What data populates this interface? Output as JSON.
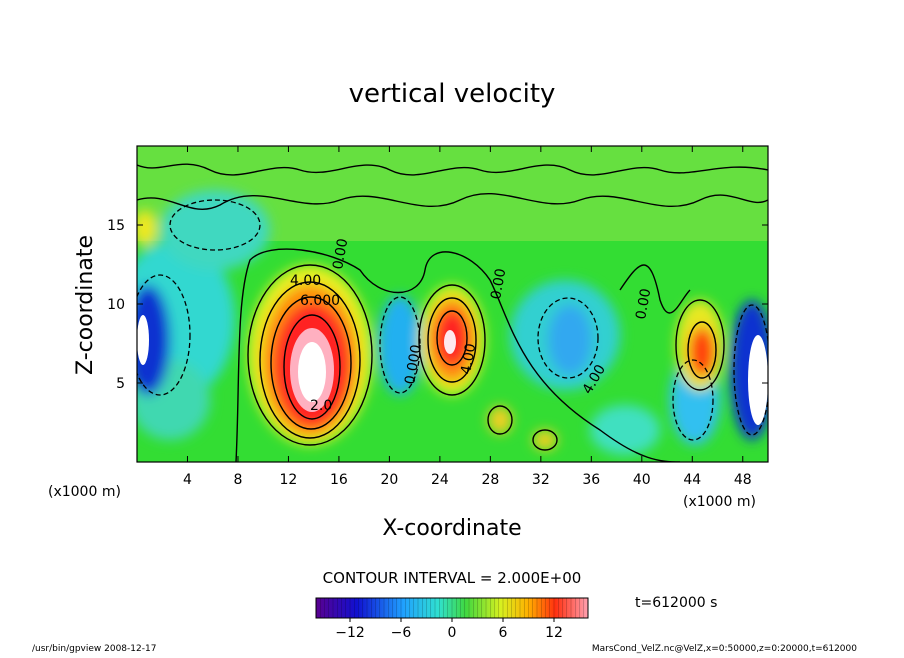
{
  "footer": {
    "left": "/usr/bin/gpview  2008-12-17",
    "right": "MarsCond_VelZ.nc@VelZ,x=0:50000,z=0:20000,t=612000"
  },
  "contour_interval": "CONTOUR INTERVAL = 2.000E+00",
  "time_label": "t=612000 s",
  "x_unit_left": "(x1000 m)",
  "x_unit_right": "(x1000 m)",
  "chart_data": {
    "type": "heatmap",
    "title": "vertical velocity",
    "xlabel": "X-coordinate",
    "ylabel": "Z-coordinate",
    "x_unit": "(x1000 m)",
    "xlim": [
      0,
      50
    ],
    "ylim": [
      0,
      20
    ],
    "x_ticks": [
      4,
      8,
      12,
      16,
      20,
      24,
      28,
      32,
      36,
      40,
      44,
      48
    ],
    "y_ticks": [
      5,
      10,
      15
    ],
    "colorbar": {
      "min": -16,
      "max": 16,
      "ticks": [
        -12,
        -6,
        0,
        6,
        12
      ]
    },
    "contour_labels": [
      "4.00",
      "6.000",
      "2.0",
      "0.00",
      "0.000",
      "4.00",
      "0.00",
      "4.00",
      "0.00"
    ],
    "features": [
      {
        "x": 13.5,
        "z": 6.5,
        "value": 14
      },
      {
        "x": 25.0,
        "z": 7.5,
        "value": 12
      },
      {
        "x": 44.5,
        "z": 6.5,
        "value": 10
      },
      {
        "x": 29.0,
        "z": 2.5,
        "value": 6
      },
      {
        "x": 32.5,
        "z": 1.3,
        "value": 6
      },
      {
        "x": 0.8,
        "z": 7.5,
        "value": -16
      },
      {
        "x": 48.5,
        "z": 6.0,
        "value": -16
      },
      {
        "x": 21.0,
        "z": 7.5,
        "value": -7
      },
      {
        "x": 34.5,
        "z": 7.5,
        "value": -6
      },
      {
        "x": 7.0,
        "z": 11.0,
        "value": -6
      },
      {
        "x": 43.0,
        "z": 3.0,
        "value": -7
      },
      {
        "x": 0.5,
        "z": 15.0,
        "value": 5
      }
    ],
    "colors": {
      "background": "#33dd33",
      "upper_band": "#55e040"
    }
  }
}
